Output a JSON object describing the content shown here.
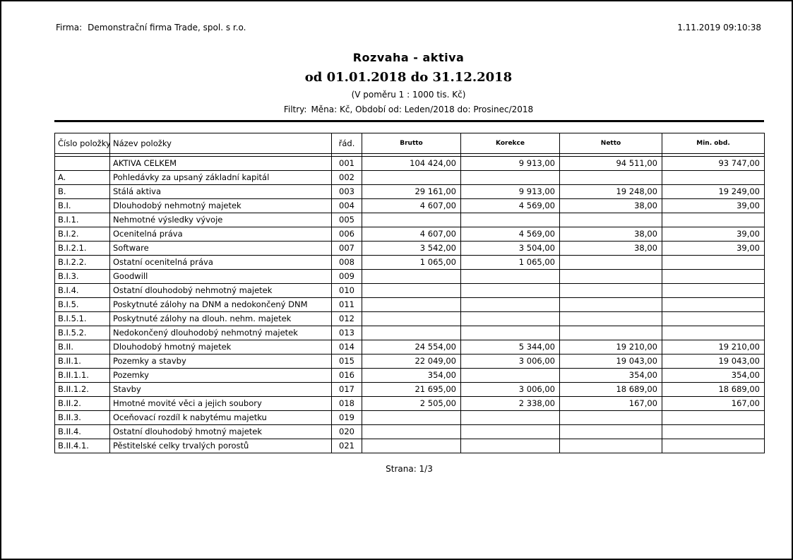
{
  "header": {
    "firm_label": "Firma:",
    "firm_name": "Demonstrační firma Trade, spol. s r.o.",
    "printed_at": "1.11.2019 09:10:38"
  },
  "title_block": {
    "title": "Rozvaha - aktiva",
    "period": "od 01.01.2018 do 31.12.2018",
    "scale_note": "(V poměru 1 : 1000 tis. Kč)",
    "filters_label": "Filtry:",
    "filters_value": "Měna: Kč, Období od: Leden/2018 do: Prosinec/2018"
  },
  "table": {
    "headers": [
      "Číslo položky",
      "Název položky",
      "řád.",
      "Brutto",
      "Korekce",
      "Netto",
      "Min. obd."
    ],
    "rows": [
      {
        "code": "",
        "name": "AKTIVA CELKEM",
        "line": "001",
        "brutto": "104 424,00",
        "korekce": "9 913,00",
        "netto": "94 511,00",
        "min_obd": "93 747,00"
      },
      {
        "code": "A.",
        "name": "Pohledávky za upsaný základní kapitál",
        "line": "002",
        "brutto": "",
        "korekce": "",
        "netto": "",
        "min_obd": ""
      },
      {
        "code": "B.",
        "name": "Stálá aktiva",
        "line": "003",
        "brutto": "29 161,00",
        "korekce": "9 913,00",
        "netto": "19 248,00",
        "min_obd": "19 249,00"
      },
      {
        "code": "B.I.",
        "name": "Dlouhodobý nehmotný majetek",
        "line": "004",
        "brutto": "4 607,00",
        "korekce": "4 569,00",
        "netto": "38,00",
        "min_obd": "39,00"
      },
      {
        "code": "B.I.1.",
        "name": "Nehmotné výsledky vývoje",
        "line": "005",
        "brutto": "",
        "korekce": "",
        "netto": "",
        "min_obd": ""
      },
      {
        "code": "B.I.2.",
        "name": "Ocenitelná práva",
        "line": "006",
        "brutto": "4 607,00",
        "korekce": "4 569,00",
        "netto": "38,00",
        "min_obd": "39,00"
      },
      {
        "code": "B.I.2.1.",
        "name": "Software",
        "line": "007",
        "brutto": "3 542,00",
        "korekce": "3 504,00",
        "netto": "38,00",
        "min_obd": "39,00"
      },
      {
        "code": "B.I.2.2.",
        "name": "Ostatní ocenitelná práva",
        "line": "008",
        "brutto": "1 065,00",
        "korekce": "1 065,00",
        "netto": "",
        "min_obd": ""
      },
      {
        "code": "B.I.3.",
        "name": "Goodwill",
        "line": "009",
        "brutto": "",
        "korekce": "",
        "netto": "",
        "min_obd": ""
      },
      {
        "code": "B.I.4.",
        "name": "Ostatní dlouhodobý nehmotný majetek",
        "line": "010",
        "brutto": "",
        "korekce": "",
        "netto": "",
        "min_obd": ""
      },
      {
        "code": "B.I.5.",
        "name": "Poskytnuté zálohy na DNM a nedokončený DNM",
        "line": "011",
        "brutto": "",
        "korekce": "",
        "netto": "",
        "min_obd": ""
      },
      {
        "code": "B.I.5.1.",
        "name": "Poskytnuté zálohy na dlouh. nehm. majetek",
        "line": "012",
        "brutto": "",
        "korekce": "",
        "netto": "",
        "min_obd": ""
      },
      {
        "code": "B.I.5.2.",
        "name": "Nedokončený dlouhodobý nehmotný majetek",
        "line": "013",
        "brutto": "",
        "korekce": "",
        "netto": "",
        "min_obd": ""
      },
      {
        "code": "B.II.",
        "name": "Dlouhodobý hmotný majetek",
        "line": "014",
        "brutto": "24 554,00",
        "korekce": "5 344,00",
        "netto": "19 210,00",
        "min_obd": "19 210,00"
      },
      {
        "code": "B.II.1.",
        "name": "Pozemky a stavby",
        "line": "015",
        "brutto": "22 049,00",
        "korekce": "3 006,00",
        "netto": "19 043,00",
        "min_obd": "19 043,00"
      },
      {
        "code": "B.II.1.1.",
        "name": "Pozemky",
        "line": "016",
        "brutto": "354,00",
        "korekce": "",
        "netto": "354,00",
        "min_obd": "354,00"
      },
      {
        "code": "B.II.1.2.",
        "name": "Stavby",
        "line": "017",
        "brutto": "21 695,00",
        "korekce": "3 006,00",
        "netto": "18 689,00",
        "min_obd": "18 689,00"
      },
      {
        "code": "B.II.2.",
        "name": "Hmotné movité věci a jejich soubory",
        "line": "018",
        "brutto": "2 505,00",
        "korekce": "2 338,00",
        "netto": "167,00",
        "min_obd": "167,00"
      },
      {
        "code": "B.II.3.",
        "name": "Oceňovací rozdíl k nabytému majetku",
        "line": "019",
        "brutto": "",
        "korekce": "",
        "netto": "",
        "min_obd": ""
      },
      {
        "code": "B.II.4.",
        "name": "Ostatní dlouhodobý hmotný majetek",
        "line": "020",
        "brutto": "",
        "korekce": "",
        "netto": "",
        "min_obd": ""
      },
      {
        "code": "B.II.4.1.",
        "name": "Pěstitelské celky trvalých porostů",
        "line": "021",
        "brutto": "",
        "korekce": "",
        "netto": "",
        "min_obd": ""
      }
    ]
  },
  "footer": {
    "page_number": "Strana: 1/3"
  }
}
